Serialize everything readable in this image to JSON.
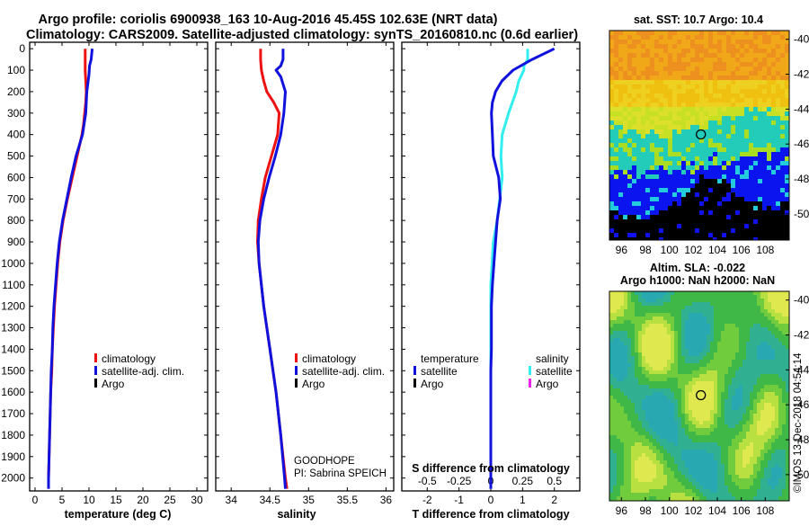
{
  "title": {
    "line1": "Argo profile: coriolis 6900938_163 10-Aug-2016 45.45S 102.63E (NRT data)",
    "line2": "Climatology: CARS2009. Satellite-adjusted climatology: synTS_20160810.nc (0.6d earlier)"
  },
  "colors": {
    "red": "#ee1111",
    "blue": "#1111dd",
    "cyan": "#33eeee",
    "magenta": "#ee22ee",
    "black": "#000000"
  },
  "depth_ticks": [
    "0",
    "100",
    "200",
    "300",
    "400",
    "500",
    "600",
    "700",
    "800",
    "900",
    "1000",
    "1100",
    "1200",
    "1300",
    "1400",
    "1500",
    "1600",
    "1700",
    "1800",
    "1900",
    "2000"
  ],
  "legend": {
    "climatology": "climatology",
    "satellite_adj": "satellite-adj. clim.",
    "argo": "Argo",
    "temperature": "temperature",
    "salinity": "salinity",
    "satellite": "satellite"
  },
  "credits": {
    "line1": "GOODHOPE",
    "line2": "PI: Sabrina SPEICH"
  },
  "chart_data": [
    {
      "type": "line",
      "name": "temperature-profile",
      "xlabel": "temperature (deg C)",
      "ylabel": "depth",
      "xlim": [
        -1,
        32
      ],
      "ylim": [
        2060,
        -30
      ],
      "xticks": [
        "0",
        "5",
        "10",
        "15",
        "20",
        "25",
        "30"
      ],
      "series": [
        {
          "name": "climatology",
          "color": "red",
          "depth": [
            0,
            50,
            100,
            150,
            200,
            250,
            300,
            350,
            400,
            500,
            600,
            700,
            800,
            900,
            1000,
            1100,
            1200,
            1300,
            1400,
            1500,
            1600,
            1700,
            1800,
            1900,
            2000,
            2050
          ],
          "values": [
            9.3,
            9.3,
            9.3,
            9.4,
            9.5,
            9.4,
            9.2,
            9.0,
            8.7,
            7.8,
            6.9,
            6.0,
            5.2,
            4.6,
            4.2,
            3.9,
            3.6,
            3.4,
            3.2,
            3.1,
            2.9,
            2.8,
            2.7,
            2.6,
            2.5,
            2.5
          ]
        },
        {
          "name": "satellite-adj. clim.",
          "color": "blue",
          "depth": [
            0,
            50,
            80,
            120,
            200,
            250,
            300,
            400,
            500,
            600,
            700,
            800,
            900,
            1000,
            1100,
            1200,
            1300,
            1400,
            1500,
            1600,
            1700,
            1800,
            1900,
            2000,
            2050
          ],
          "values": [
            10.6,
            10.4,
            10.1,
            10.0,
            9.6,
            9.5,
            9.4,
            8.8,
            7.6,
            6.7,
            5.9,
            5.1,
            4.5,
            4.1,
            3.8,
            3.5,
            3.3,
            3.2,
            3.0,
            2.9,
            2.8,
            2.7,
            2.6,
            2.5,
            2.5
          ]
        }
      ]
    },
    {
      "type": "line",
      "name": "salinity-profile",
      "xlabel": "salinity",
      "ylabel": "depth",
      "xlim": [
        33.8,
        36.1
      ],
      "ylim": [
        2060,
        -30
      ],
      "xticks": [
        "34",
        "34.5",
        "35",
        "35.5",
        "36"
      ],
      "series": [
        {
          "name": "climatology",
          "color": "red",
          "depth": [
            0,
            50,
            100,
            150,
            200,
            250,
            300,
            400,
            500,
            600,
            700,
            800,
            900,
            1000,
            1200,
            1400,
            1600,
            1800,
            2000,
            2050
          ],
          "values": [
            34.38,
            34.38,
            34.39,
            34.42,
            34.46,
            34.55,
            34.62,
            34.6,
            34.52,
            34.44,
            34.39,
            34.35,
            34.34,
            34.36,
            34.42,
            34.5,
            34.58,
            34.64,
            34.7,
            34.72
          ]
        },
        {
          "name": "satellite-adj. clim.",
          "color": "blue",
          "depth": [
            0,
            50,
            80,
            100,
            130,
            200,
            300,
            400,
            500,
            600,
            700,
            800,
            900,
            1000,
            1200,
            1400,
            1600,
            1800,
            2000,
            2050
          ],
          "values": [
            34.67,
            34.67,
            34.64,
            34.58,
            34.64,
            34.7,
            34.68,
            34.64,
            34.57,
            34.49,
            34.42,
            34.37,
            34.35,
            34.36,
            34.42,
            34.5,
            34.58,
            34.64,
            34.69,
            34.7
          ]
        }
      ]
    },
    {
      "type": "line",
      "name": "difference-profile",
      "xlabel": "T difference from climatology",
      "x2label": "S difference from climatology",
      "xlim": [
        -2.8,
        2.8
      ],
      "x2lim": [
        -0.7,
        0.7
      ],
      "ylim": [
        2060,
        -30
      ],
      "xticks": [
        "-2",
        "-1",
        "0",
        "1",
        "2"
      ],
      "x2ticks": [
        "-0.5",
        "-0.25",
        "0",
        "0.25",
        "0.5"
      ],
      "series": [
        {
          "name": "satellite (temperature)",
          "color": "blue",
          "axis": "T",
          "depth": [
            0,
            50,
            100,
            150,
            200,
            250,
            300,
            400,
            500,
            600,
            700,
            800,
            900,
            1000,
            1100,
            1200,
            1300,
            1400,
            1500,
            1600,
            1700,
            1800,
            1900,
            2000,
            2050
          ],
          "values": [
            2.0,
            1.3,
            0.7,
            0.35,
            0.15,
            0.05,
            0.02,
            0.05,
            0.08,
            0.25,
            0.3,
            0.2,
            0.15,
            0.1,
            0.05,
            0.02,
            0.02,
            0.02,
            0.0,
            0.0,
            0.0,
            0.0,
            0.0,
            0.0,
            0.0
          ]
        },
        {
          "name": "satellite (salinity)",
          "color": "cyan",
          "axis": "S",
          "depth": [
            0,
            50,
            80,
            100,
            150,
            200,
            300,
            400,
            500,
            600,
            700,
            800,
            900,
            1000,
            1100,
            1200,
            1400,
            1600,
            1800,
            2000,
            2050
          ],
          "values": [
            0.29,
            0.29,
            0.26,
            0.26,
            0.22,
            0.2,
            0.14,
            0.09,
            0.08,
            0.09,
            0.07,
            0.05,
            0.02,
            0.01,
            0.0,
            0.0,
            0.0,
            0.0,
            0.0,
            0.0,
            0.0
          ]
        }
      ]
    },
    {
      "type": "heatmap",
      "name": "sst-map",
      "title": "sat. SST: 10.7 Argo: 10.4",
      "xticks": [
        "96",
        "98",
        "100",
        "102",
        "104",
        "106",
        "108"
      ],
      "yticks": [
        "-40",
        "-42",
        "-44",
        "-46",
        "-48",
        "-50"
      ],
      "xlim": [
        95,
        110
      ],
      "ylim": [
        -51.5,
        -39.5
      ],
      "marker": {
        "lon": 102.63,
        "lat": -45.45
      }
    },
    {
      "type": "heatmap",
      "name": "sla-map",
      "title1": "Altim. SLA: -0.022",
      "title2": "Argo h1000: NaN h2000: NaN",
      "xticks": [
        "96",
        "98",
        "100",
        "102",
        "104",
        "106",
        "108"
      ],
      "yticks": [
        "-40",
        "-42",
        "-44",
        "-46",
        "-48",
        "-50"
      ],
      "xlim": [
        95,
        110
      ],
      "ylim": [
        -51.5,
        -39.5
      ],
      "marker": {
        "lon": 102.63,
        "lat": -45.45
      },
      "credit": "©IMOS 13-Dec-2018 04:54:14"
    }
  ]
}
